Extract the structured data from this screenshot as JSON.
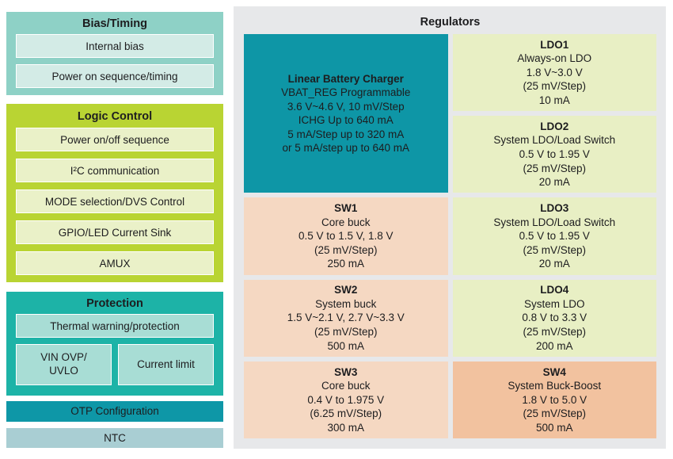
{
  "palette": {
    "bias_bg": "#8ed1c6",
    "bias_row_bg": "#d3ebe6",
    "logic_bg": "#b9d433",
    "logic_row_bg": "#eaf1c8",
    "protection_bg": "#1db3a7",
    "protection_row_bg": "#a8ddd5",
    "otp_bar_bg": "#0e97a7",
    "ntc_bar_bg": "#a9ced3",
    "panel_bg": "#e7e8ea",
    "charger_bg": "#0e96a6",
    "ldo_bg": "#e8efc4",
    "sw_bg": "#f5d8c2",
    "sw4_bg": "#f2c29f",
    "text": "#1d1d1f"
  },
  "left": {
    "groups": [
      {
        "title": "Bias/Timing",
        "items": [
          "Internal bias",
          "Power on sequence/timing"
        ]
      },
      {
        "title": "Logic Control",
        "items": [
          "Power on/off sequence",
          "I²C communication",
          "MODE selection/DVS Control",
          "GPIO/LED Current Sink",
          "AMUX"
        ]
      },
      {
        "title": "Protection",
        "items": [
          "Thermal warning/protection"
        ],
        "split": [
          "VIN OVP/\nUVLO",
          "Current limit"
        ]
      }
    ],
    "bars": [
      {
        "label": "OTP Configuration"
      },
      {
        "label": "NTC"
      }
    ]
  },
  "regulators": {
    "title": "Regulators",
    "blocks": [
      {
        "name": "Linear Battery Charger",
        "desc": "VBAT_REG Programmable\n3.6 V~4.6 V, 10 mV/Step\nICHG Up to 640 mA\n5 mA/Step up to 320 mA\nor 5 mA/step up to 640 mA"
      },
      {
        "name": "LDO1",
        "desc": "Always-on LDO\n1.8 V~3.0 V\n(25 mV/Step)\n10 mA"
      },
      {
        "name": "LDO2",
        "desc": "System LDO/Load Switch\n0.5 V to 1.95 V\n(25 mV/Step)\n20 mA"
      },
      {
        "name": "SW1",
        "desc": "Core buck\n0.5 V to 1.5 V, 1.8 V\n(25 mV/Step)\n250 mA"
      },
      {
        "name": "LDO3",
        "desc": "System LDO/Load Switch\n0.5 V to 1.95 V\n(25 mV/Step)\n20 mA"
      },
      {
        "name": "SW2",
        "desc": "System buck\n1.5 V~2.1 V, 2.7 V~3.3 V\n(25 mV/Step)\n500 mA"
      },
      {
        "name": "LDO4",
        "desc": "System LDO\n0.8 V to 3.3 V\n(25 mV/Step)\n200 mA"
      },
      {
        "name": "SW3",
        "desc": "Core buck\n0.4 V to 1.975 V\n(6.25 mV/Step)\n300 mA"
      },
      {
        "name": "SW4",
        "desc": "System Buck-Boost\n1.8 V to 5.0 V\n(25 mV/Step)\n500 mA"
      }
    ]
  }
}
